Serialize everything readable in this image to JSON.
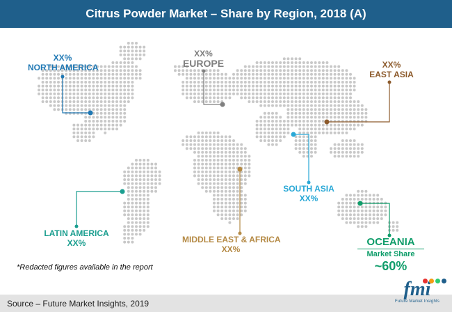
{
  "title": "Citrus Powder Market – Share by Region, 2018 (A)",
  "regions": {
    "north_america": {
      "value": "XX%",
      "name": "NORTH AMERICA",
      "color": "#1f78b4"
    },
    "europe": {
      "value": "XX%",
      "name": "EUROPE",
      "color": "#7f7f7f"
    },
    "east_asia": {
      "value": "XX%",
      "name": "EAST ASIA",
      "color": "#8c5a2b"
    },
    "south_asia": {
      "name": "SOUTH ASIA",
      "value": "XX%",
      "color": "#29a8d6"
    },
    "latin_america": {
      "name": "LATIN AMERICA",
      "value": "XX%",
      "color": "#1a9e8f"
    },
    "mea": {
      "name": "MIDDLE EAST & AFRICA",
      "value": "XX%",
      "color": "#b58a45"
    },
    "oceania": {
      "name": "OCEANIA",
      "share_label": "Market Share",
      "value": "~60%",
      "color": "#0f9d6a"
    }
  },
  "note": "*Redacted figures available in the report",
  "source": "Source – Future Market Insights, 2019",
  "logo": {
    "mark": "fmi",
    "tagline": "Future Market Insights"
  }
}
